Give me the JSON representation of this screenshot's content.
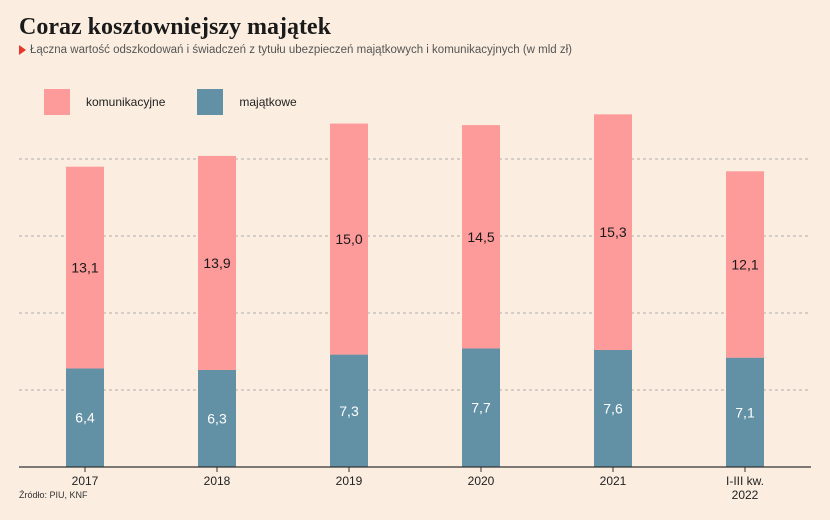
{
  "title": "Coraz kosztowniejszy majątek",
  "subtitle": "Łączna wartość odszkodowań i świadczeń z tytułu ubezpieczeń majątkowych i komunikacyjnych (w mld zł)",
  "source": "Źródło: PIU, KNF",
  "colors": {
    "background": "#fbeee0",
    "komunikacyjne": "#fd9a9a",
    "majatkowe": "#6290a4",
    "accent": "#e8372b"
  },
  "legend": [
    {
      "label": "komunikacyjne",
      "color": "#fd9a9a"
    },
    {
      "label": "majątkowe",
      "color": "#6290a4"
    }
  ],
  "chart_data": {
    "type": "bar",
    "stacked": true,
    "categories": [
      "2017",
      "2018",
      "2019",
      "2020",
      "2021",
      "I-III kw.\n2022"
    ],
    "series": [
      {
        "name": "majątkowe",
        "values": [
          6.4,
          6.3,
          7.3,
          7.7,
          7.6,
          7.1
        ],
        "labels": [
          "6,4",
          "6,3",
          "7,3",
          "7,7",
          "7,6",
          "7,1"
        ]
      },
      {
        "name": "komunikacyjne",
        "values": [
          13.1,
          13.9,
          15.0,
          14.5,
          15.3,
          12.1
        ],
        "labels": [
          "13,1",
          "13,9",
          "15,0",
          "14,5",
          "15,3",
          "12,1"
        ]
      }
    ],
    "ylim": [
      0,
      25
    ],
    "grid": true,
    "legend_position": "top-left"
  }
}
